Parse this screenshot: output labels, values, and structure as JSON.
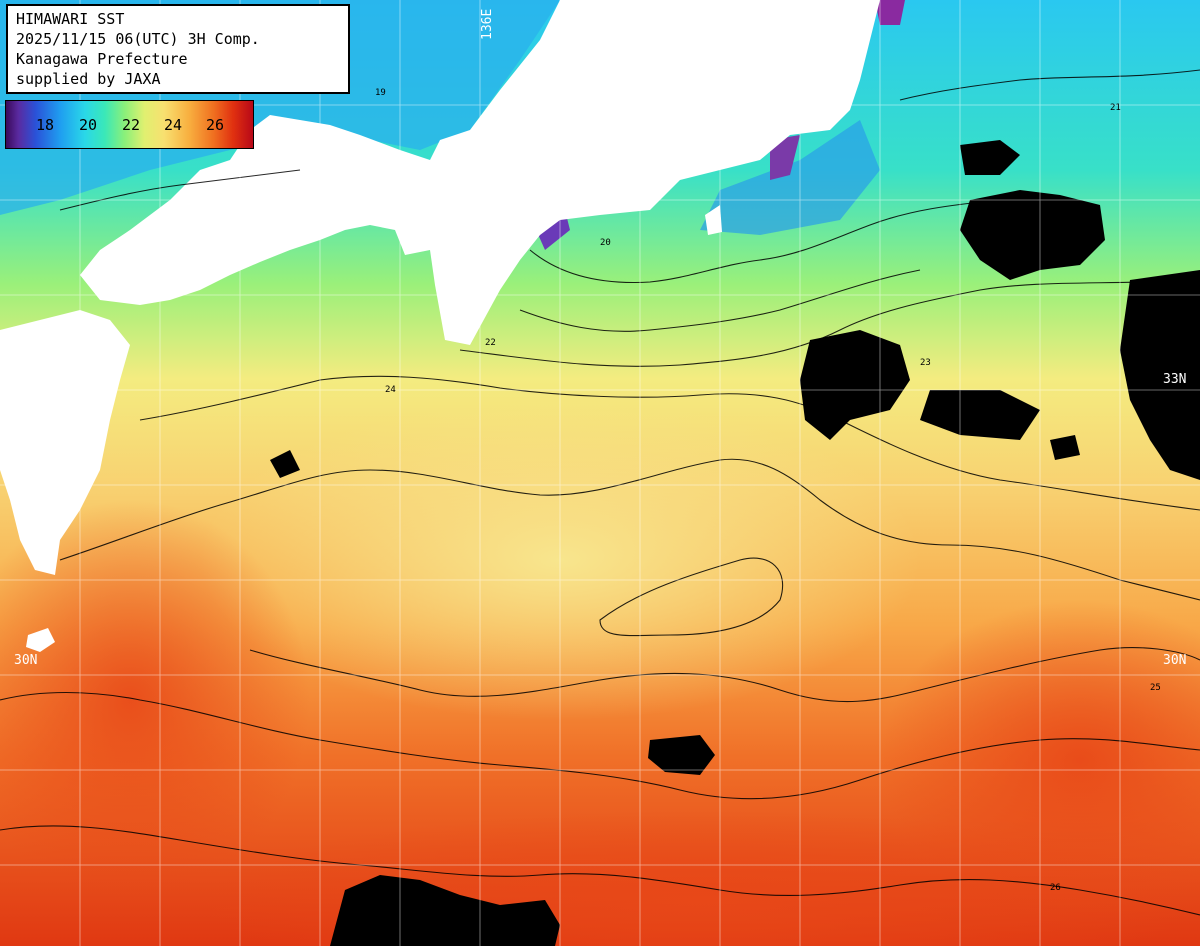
{
  "header": {
    "line1": "HIMAWARI SST",
    "line2": "2025/11/15 06(UTC) 3H Comp.",
    "line3": "Kanagawa Prefecture",
    "line4": "supplied by JAXA"
  },
  "legend": {
    "ticks": [
      "18",
      "20",
      "22",
      "24",
      "26"
    ]
  },
  "grid_labels": {
    "lon_136": "136E",
    "lat_33": "33N",
    "lat_30_right": "30N",
    "lat_30_left": "30N"
  },
  "contour_labels": [
    "19",
    "20",
    "21",
    "22",
    "23",
    "24",
    "25",
    "26"
  ],
  "colors": {
    "land": "#ffffff",
    "nodata": "#000000",
    "grid": "#ffffff"
  }
}
